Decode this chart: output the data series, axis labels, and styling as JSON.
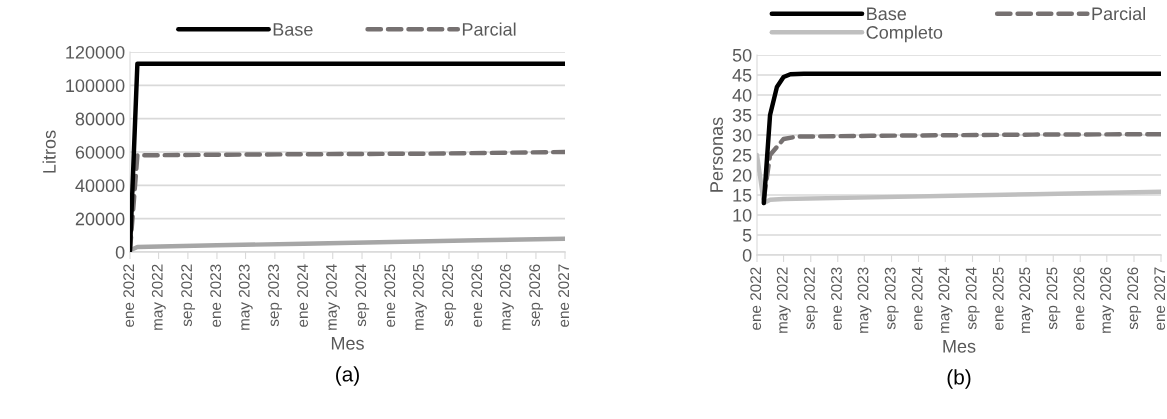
{
  "chart_data": [
    {
      "type": "line",
      "ylabel": "Litros",
      "xlabel": "Mes",
      "annotations": [
        "(a)"
      ],
      "legend": "top",
      "grid": "y",
      "marker": "none",
      "xlim": [
        "2022-01",
        "2027-01"
      ],
      "ylim": [
        0,
        120000
      ],
      "yticks": [
        0,
        20000,
        40000,
        60000,
        80000,
        100000,
        120000
      ],
      "xticks": [
        {
          "value": "2022-01",
          "label": "ene 2022"
        },
        {
          "value": "2022-05",
          "label": "may 2022"
        },
        {
          "value": "2022-09",
          "label": "sep 2022"
        },
        {
          "value": "2023-01",
          "label": "ene 2023"
        },
        {
          "value": "2023-05",
          "label": "may 2023"
        },
        {
          "value": "2023-09",
          "label": "sep 2023"
        },
        {
          "value": "2024-01",
          "label": "ene 2024"
        },
        {
          "value": "2024-05",
          "label": "may 2024"
        },
        {
          "value": "2024-09",
          "label": "sep 2024"
        },
        {
          "value": "2025-01",
          "label": "ene 2025"
        },
        {
          "value": "2025-05",
          "label": "may 2025"
        },
        {
          "value": "2025-09",
          "label": "sep 2025"
        },
        {
          "value": "2026-01",
          "label": "ene 2026"
        },
        {
          "value": "2026-05",
          "label": "may 2026"
        },
        {
          "value": "2026-09",
          "label": "sep 2026"
        },
        {
          "value": "2027-01",
          "label": "ene 2027"
        }
      ],
      "series": [
        {
          "name": "Base",
          "color": "#000000",
          "line_style": "solid",
          "x": [
            "2022-01",
            "2022-02",
            "2022-06",
            "2027-01"
          ],
          "values": [
            1000,
            113000,
            113000,
            113000
          ]
        },
        {
          "name": "Parcial",
          "color": "#767171",
          "line_style": "dashed",
          "x": [
            "2022-01",
            "2022-02",
            "2023-06",
            "2025-06",
            "2027-01"
          ],
          "values": [
            1000,
            58000,
            58500,
            59000,
            60000
          ]
        },
        {
          "color": "#a6a6a6",
          "line_style": "solid",
          "x": [
            "2022-01",
            "2022-02",
            "2023-01",
            "2024-01",
            "2025-01",
            "2026-01",
            "2027-01"
          ],
          "values": [
            1000,
            3000,
            4000,
            5000,
            6000,
            7000,
            8000
          ]
        }
      ]
    },
    {
      "type": "line",
      "ylabel": "Personas",
      "xlabel": "Mes",
      "annotations": [
        "(b)"
      ],
      "legend": "top",
      "grid": "y",
      "marker": "none",
      "xlim": [
        "2022-01",
        "2027-01"
      ],
      "ylim": [
        0,
        50
      ],
      "yticks": [
        0,
        5,
        10,
        15,
        20,
        25,
        30,
        35,
        40,
        45,
        50
      ],
      "xticks": [
        {
          "value": "2022-01",
          "label": "ene 2022"
        },
        {
          "value": "2022-05",
          "label": "may 2022"
        },
        {
          "value": "2022-09",
          "label": "sep 2022"
        },
        {
          "value": "2023-01",
          "label": "ene 2023"
        },
        {
          "value": "2023-05",
          "label": "may 2023"
        },
        {
          "value": "2023-09",
          "label": "sep 2023"
        },
        {
          "value": "2024-01",
          "label": "ene 2024"
        },
        {
          "value": "2024-05",
          "label": "may 2024"
        },
        {
          "value": "2024-09",
          "label": "sep 2024"
        },
        {
          "value": "2025-01",
          "label": "ene 2025"
        },
        {
          "value": "2025-05",
          "label": "may 2025"
        },
        {
          "value": "2025-09",
          "label": "sep 2025"
        },
        {
          "value": "2026-01",
          "label": "ene 2026"
        },
        {
          "value": "2026-05",
          "label": "may 2026"
        },
        {
          "value": "2026-09",
          "label": "sep 2026"
        },
        {
          "value": "2027-01",
          "label": "ene 2027"
        }
      ],
      "series": [
        {
          "name": "Base",
          "color": "#000000",
          "line_style": "solid",
          "x": [
            "2022-02",
            "2022-03",
            "2022-04",
            "2022-05",
            "2022-06",
            "2022-08",
            "2027-01"
          ],
          "values": [
            13,
            35,
            42,
            44.5,
            45.2,
            45.3,
            45.3
          ]
        },
        {
          "name": "Parcial",
          "color": "#767171",
          "line_style": "dashed",
          "x": [
            "2022-02",
            "2022-03",
            "2022-05",
            "2022-07",
            "2023-06",
            "2025-06",
            "2027-01"
          ],
          "values": [
            14,
            25,
            29,
            29.6,
            29.8,
            30.1,
            30.2
          ]
        },
        {
          "name": "Completo",
          "color": "#bfbfbf",
          "line_style": "solid",
          "x": [
            "2022-01",
            "2022-02",
            "2022-03",
            "2022-05",
            "2023-06",
            "2024-06",
            "2025-06",
            "2027-01"
          ],
          "values": [
            25,
            13,
            13.8,
            14,
            14.4,
            14.8,
            15.2,
            15.8
          ]
        }
      ]
    }
  ]
}
